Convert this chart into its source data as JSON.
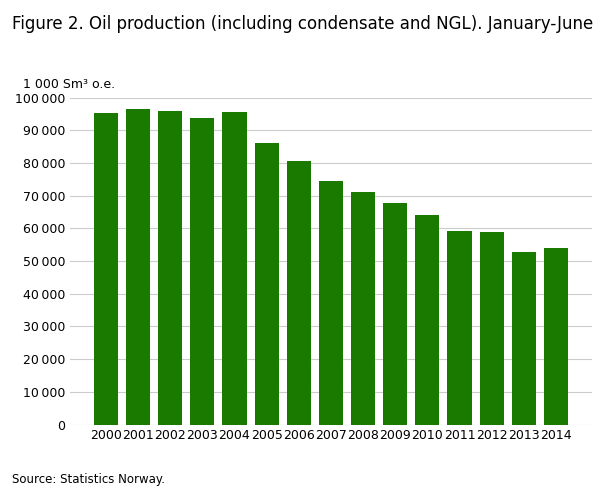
{
  "title": "Figure 2. Oil production (including condensate and NGL). January-June",
  "ylabel_above": "1 000 Sm³ o.e.",
  "source": "Source: Statistics Norway.",
  "bar_color": "#1a7a00",
  "background_color": "#ffffff",
  "grid_color": "#cccccc",
  "years": [
    2000,
    2001,
    2002,
    2003,
    2004,
    2005,
    2006,
    2007,
    2008,
    2009,
    2010,
    2011,
    2012,
    2013,
    2014
  ],
  "values": [
    95200,
    96500,
    96000,
    93800,
    95500,
    86200,
    80700,
    74500,
    71000,
    67800,
    64000,
    59200,
    58900,
    52700,
    54000
  ],
  "ylim": [
    0,
    100000
  ],
  "yticks": [
    0,
    10000,
    20000,
    30000,
    40000,
    50000,
    60000,
    70000,
    80000,
    90000,
    100000
  ],
  "title_fontsize": 12,
  "ylabel_fontsize": 9,
  "tick_fontsize": 9,
  "source_fontsize": 8.5
}
